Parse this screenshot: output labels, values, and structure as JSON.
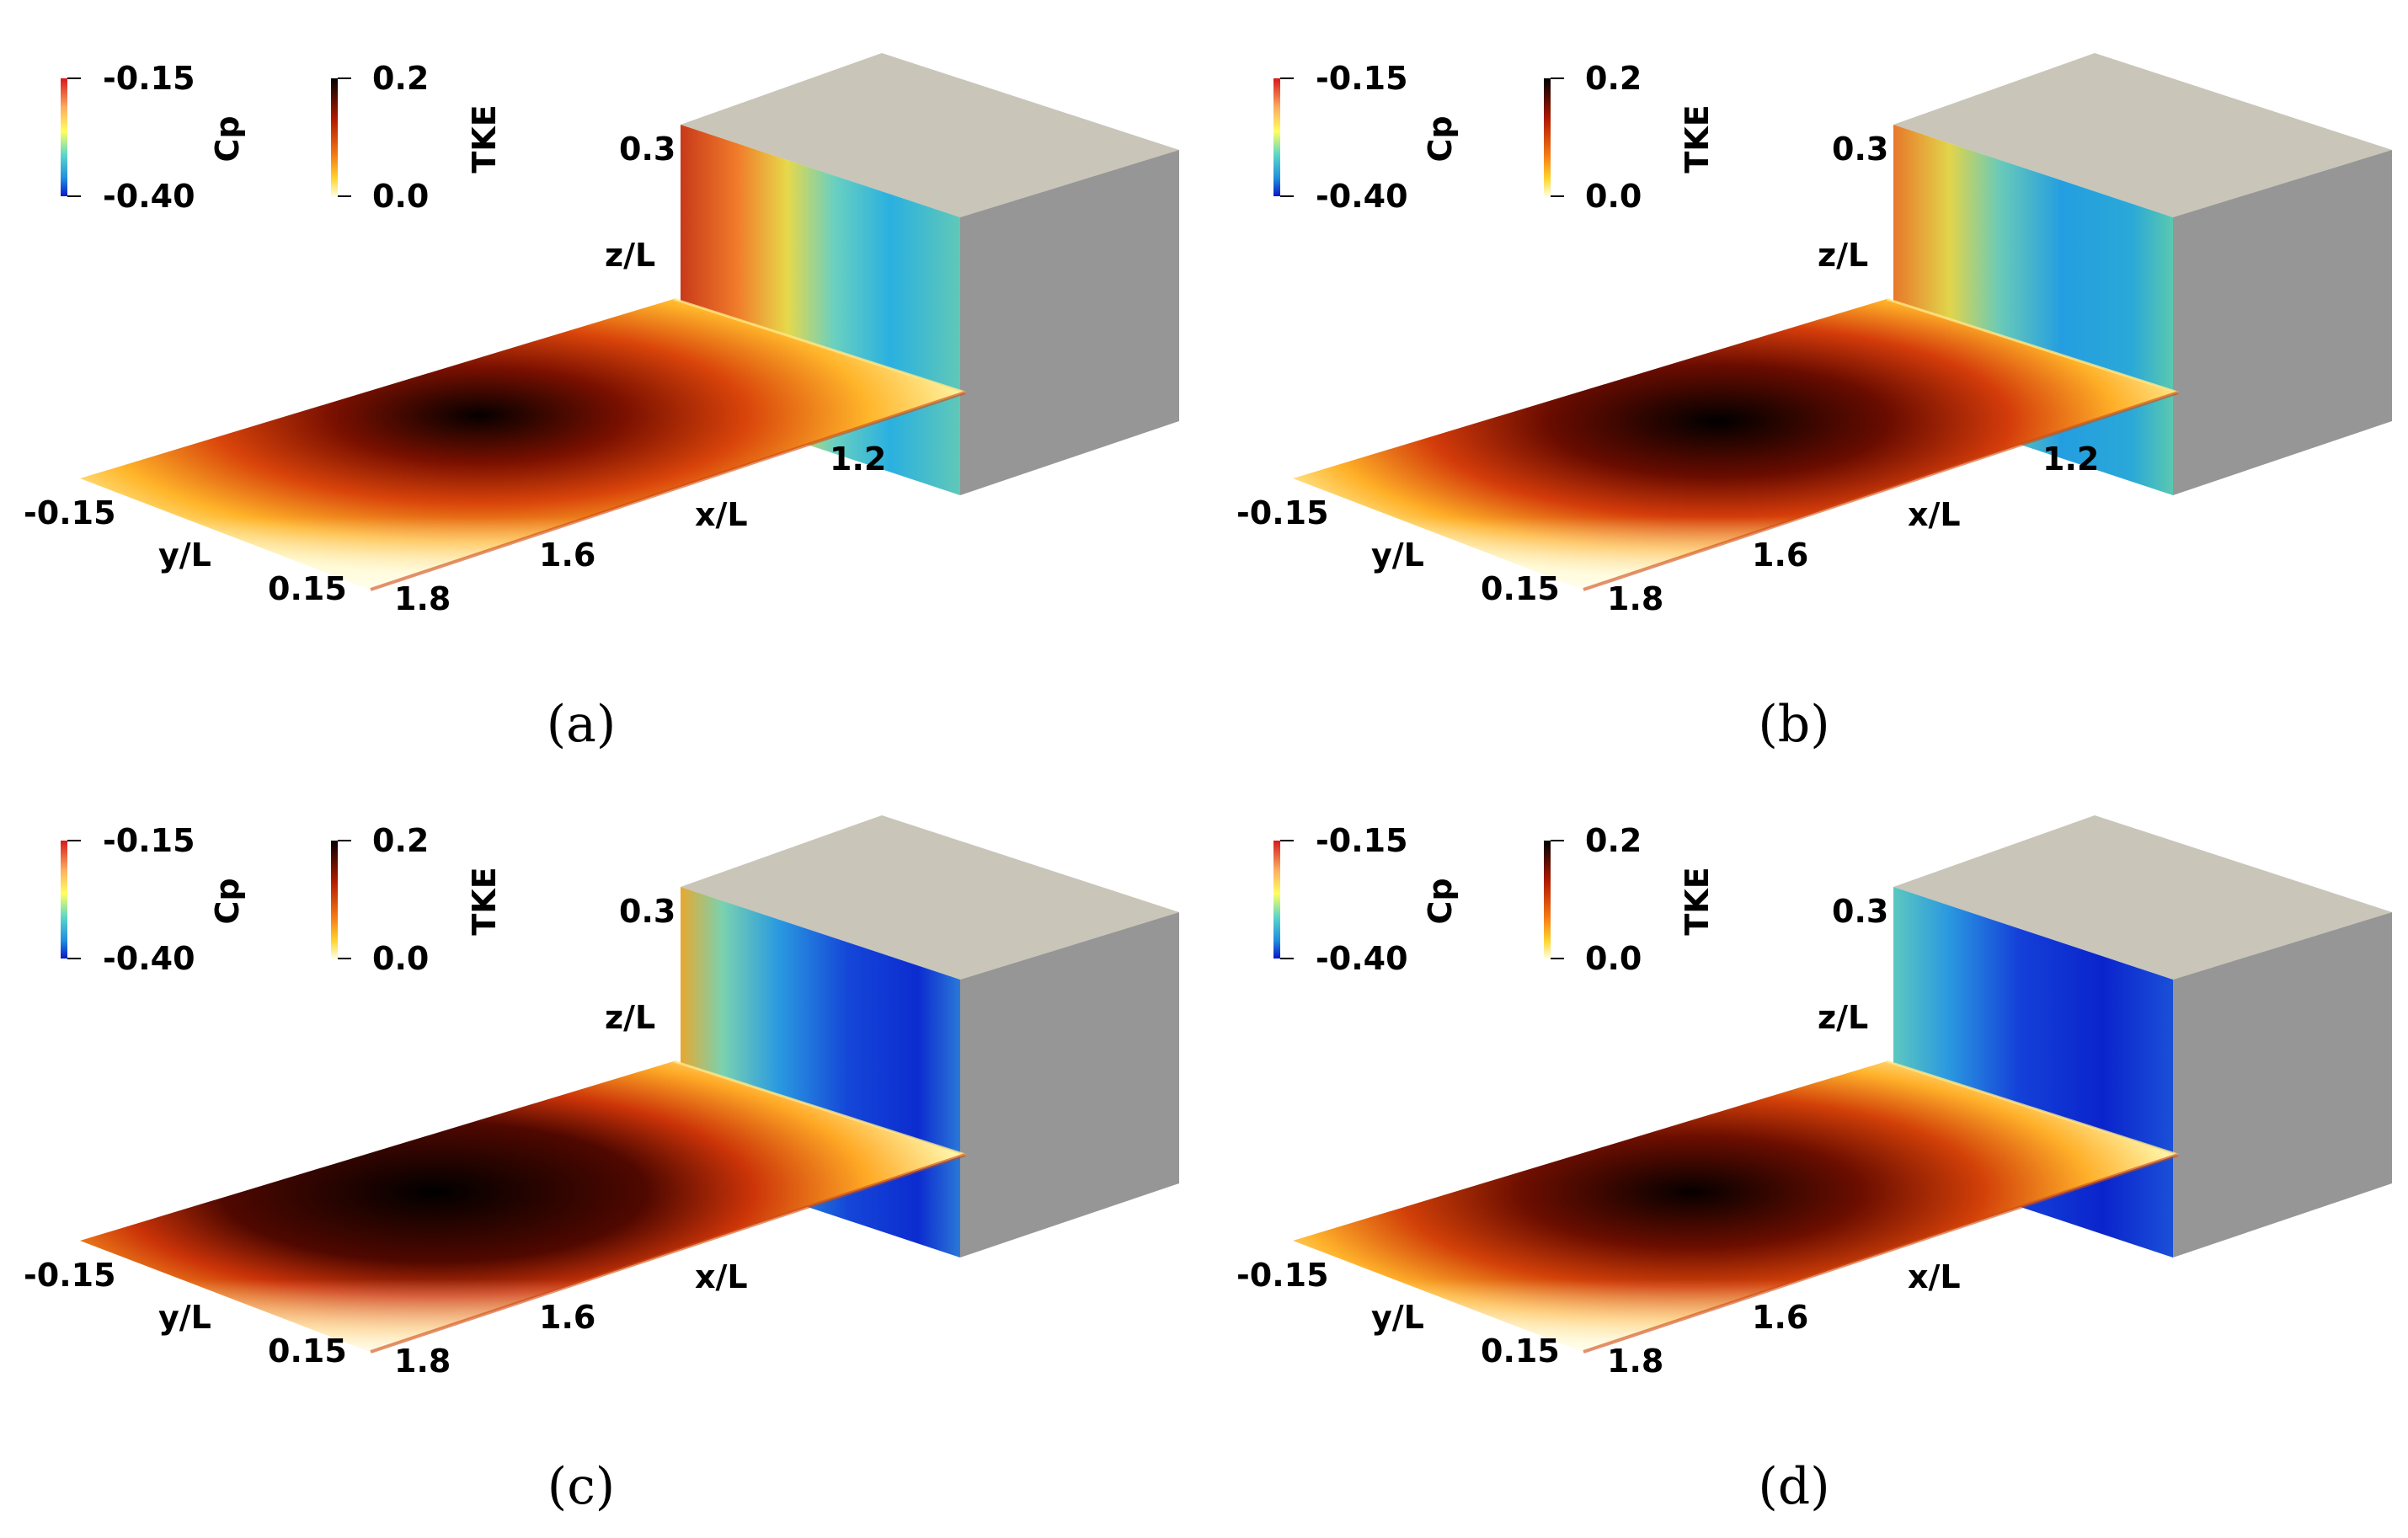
{
  "panels": [
    {
      "caption": "(a)",
      "colorbars": {
        "cp": {
          "label": "Cp",
          "max": "-0.15",
          "min": "-0.40"
        },
        "tke": {
          "label": "TKE",
          "max": "0.2",
          "min": "0.0"
        }
      },
      "axes": {
        "z_label": "z/L",
        "z_tick": "0.3",
        "x_label": "x/L",
        "x_ticks": [
          "1.2",
          "1.6",
          "1.8"
        ],
        "y_label": "y/L",
        "y_ticks": [
          "-0.15",
          "0.15"
        ]
      }
    },
    {
      "caption": "(b)",
      "colorbars": {
        "cp": {
          "label": "Cp",
          "max": "-0.15",
          "min": "-0.40"
        },
        "tke": {
          "label": "TKE",
          "max": "0.2",
          "min": "0.0"
        }
      },
      "axes": {
        "z_label": "z/L",
        "z_tick": "0.3",
        "x_label": "x/L",
        "x_ticks": [
          "1.2",
          "1.6",
          "1.8"
        ],
        "y_label": "y/L",
        "y_ticks": [
          "-0.15",
          "0.15"
        ]
      }
    },
    {
      "caption": "(c)",
      "colorbars": {
        "cp": {
          "label": "Cp",
          "max": "-0.15",
          "min": "-0.40"
        },
        "tke": {
          "label": "TKE",
          "max": "0.2",
          "min": "0.0"
        }
      },
      "axes": {
        "z_label": "z/L",
        "z_tick": "0.3",
        "x_label": "x/L",
        "x_ticks": [
          "1.6",
          "1.8"
        ],
        "y_label": "y/L",
        "y_ticks": [
          "-0.15",
          "0.15"
        ]
      }
    },
    {
      "caption": "(d)",
      "colorbars": {
        "cp": {
          "label": "Cp",
          "max": "-0.15",
          "min": "-0.40"
        },
        "tke": {
          "label": "TKE",
          "max": "0.2",
          "min": "0.0"
        }
      },
      "axes": {
        "z_label": "z/L",
        "z_tick": "0.3",
        "x_label": "x/L",
        "x_ticks": [
          "1.6",
          "1.8"
        ],
        "y_label": "y/L",
        "y_ticks": [
          "-0.15",
          "0.15"
        ]
      }
    }
  ],
  "colors": {
    "block_top": "#c9c5b8",
    "block_side": "#969696",
    "cp_high": "#d7301f",
    "cp_low": "#0a2ad6",
    "tke_high": "#000000",
    "tke_low": "#ffffe0"
  }
}
